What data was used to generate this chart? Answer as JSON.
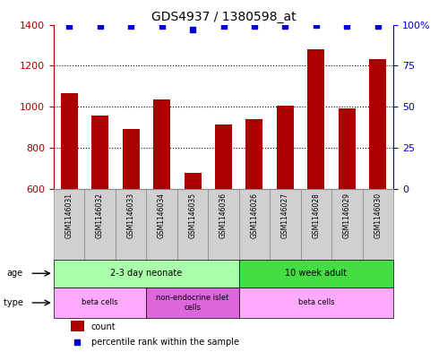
{
  "title": "GDS4937 / 1380598_at",
  "samples": [
    "GSM1146031",
    "GSM1146032",
    "GSM1146033",
    "GSM1146034",
    "GSM1146035",
    "GSM1146036",
    "GSM1146026",
    "GSM1146027",
    "GSM1146028",
    "GSM1146029",
    "GSM1146030"
  ],
  "counts": [
    1068,
    958,
    893,
    1035,
    680,
    915,
    940,
    1005,
    1278,
    993,
    1232
  ],
  "percentiles": [
    99,
    99,
    99,
    99,
    97,
    99,
    99,
    99,
    99.5,
    99,
    99
  ],
  "ylim_left": [
    600,
    1400
  ],
  "ylim_right": [
    0,
    100
  ],
  "yticks_left": [
    600,
    800,
    1000,
    1200,
    1400
  ],
  "yticks_right": [
    0,
    25,
    50,
    75,
    100
  ],
  "ytick_right_labels": [
    "0",
    "25",
    "50",
    "75",
    "100%"
  ],
  "bar_color": "#AA0000",
  "dot_color": "#0000CC",
  "gridline_y": [
    800,
    1000,
    1200
  ],
  "gray_bg": "#D0D0D0",
  "age_groups": [
    {
      "label": "2-3 day neonate",
      "start": 0,
      "end": 6,
      "color": "#AAFFAA"
    },
    {
      "label": "10 week adult",
      "start": 6,
      "end": 11,
      "color": "#44DD44"
    }
  ],
  "cell_type_groups": [
    {
      "label": "beta cells",
      "start": 0,
      "end": 3,
      "color": "#FFAAFF"
    },
    {
      "label": "non-endocrine islet\ncells",
      "start": 3,
      "end": 6,
      "color": "#DD66DD"
    },
    {
      "label": "beta cells",
      "start": 6,
      "end": 11,
      "color": "#FFAAFF"
    }
  ],
  "legend_items": [
    {
      "color": "#AA0000",
      "label": "count"
    },
    {
      "color": "#0000CC",
      "label": "percentile rank within the sample"
    }
  ]
}
